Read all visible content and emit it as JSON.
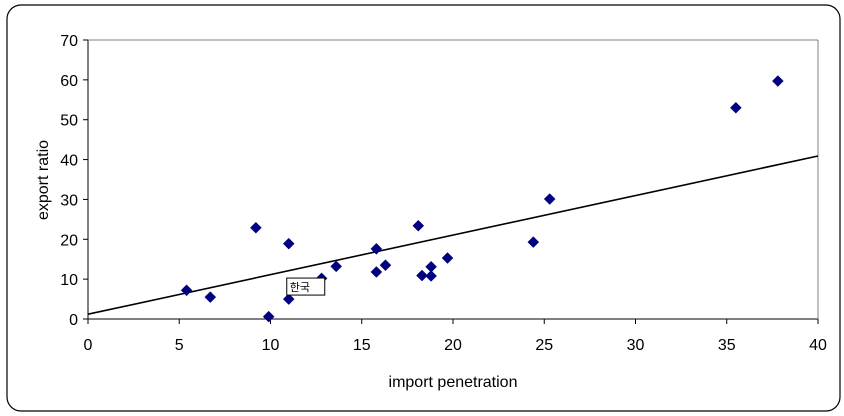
{
  "chart_data": {
    "type": "scatter",
    "title": "",
    "xlabel": "import penetration",
    "ylabel": "export ratio",
    "xlim": [
      0,
      40
    ],
    "ylim": [
      0,
      70
    ],
    "x_ticks": [
      "0",
      "5",
      "10",
      "15",
      "20",
      "25",
      "30",
      "35",
      "40"
    ],
    "y_ticks": [
      "0",
      "10",
      "20",
      "30",
      "40",
      "50",
      "60",
      "70"
    ],
    "grid": false,
    "legend": "none",
    "marker": "diamond",
    "marker_color": "#000080",
    "points": [
      {
        "x": 5.4,
        "y": 7.2
      },
      {
        "x": 6.7,
        "y": 5.5
      },
      {
        "x": 9.2,
        "y": 22.9
      },
      {
        "x": 9.9,
        "y": 0.6
      },
      {
        "x": 11.0,
        "y": 18.9
      },
      {
        "x": 11.0,
        "y": 5.0
      },
      {
        "x": 12.8,
        "y": 10.2
      },
      {
        "x": 13.6,
        "y": 13.2
      },
      {
        "x": 15.8,
        "y": 17.6
      },
      {
        "x": 15.8,
        "y": 11.8
      },
      {
        "x": 16.3,
        "y": 13.5
      },
      {
        "x": 18.1,
        "y": 23.4
      },
      {
        "x": 18.3,
        "y": 10.9
      },
      {
        "x": 18.8,
        "y": 13.1
      },
      {
        "x": 18.8,
        "y": 10.8
      },
      {
        "x": 19.7,
        "y": 15.3
      },
      {
        "x": 24.4,
        "y": 19.3
      },
      {
        "x": 25.3,
        "y": 30.1
      },
      {
        "x": 35.5,
        "y": 53.0
      },
      {
        "x": 37.8,
        "y": 59.7
      }
    ],
    "trendline": {
      "x": [
        0,
        40
      ],
      "y": [
        1.2,
        40.9
      ],
      "color": "#000000"
    },
    "annotation": {
      "text": "한국",
      "x": 11.0,
      "y": 5.0
    }
  }
}
